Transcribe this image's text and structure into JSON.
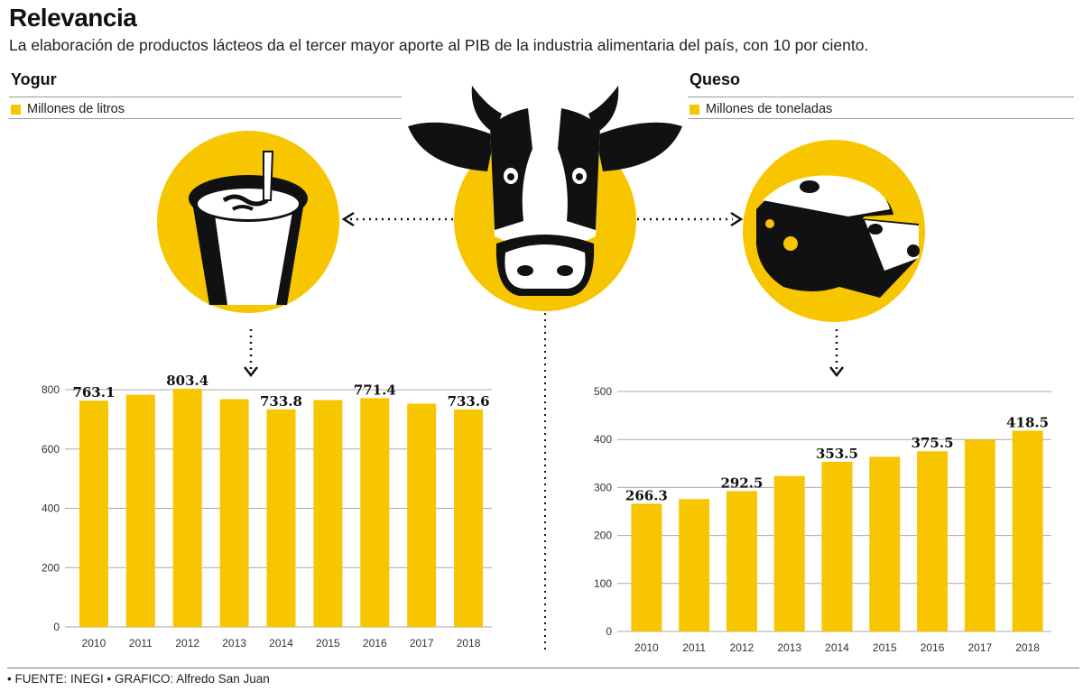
{
  "header": {
    "title": "Relevancia",
    "subtitle": "La elaboración de productos lácteos da el tercer mayor aporte al PIB de la industria alimentaria del país, con 10 por ciento."
  },
  "colors": {
    "bar": "#f7c600",
    "ink": "#111111"
  },
  "icons": [
    "yogurt-cup-icon",
    "cow-face-icon",
    "cheese-wedge-icon"
  ],
  "chart_data": [
    {
      "type": "bar",
      "title": "Yogur",
      "legend": "Millones de litros",
      "categories": [
        "2010",
        "2011",
        "2012",
        "2013",
        "2014",
        "2015",
        "2016",
        "2017",
        "2018"
      ],
      "values": [
        763.1,
        783,
        803.4,
        768,
        733.8,
        765,
        771.4,
        753,
        733.6
      ],
      "labels": [
        "763.1",
        "",
        "803.4",
        "",
        "733.8",
        "",
        "771.4",
        "",
        "733.6"
      ],
      "yticks": [
        0,
        200,
        400,
        600,
        800
      ],
      "ylim": [
        0,
        800
      ],
      "grid": true
    },
    {
      "type": "bar",
      "title": "Queso",
      "legend": "Millones de toneladas",
      "categories": [
        "2010",
        "2011",
        "2012",
        "2013",
        "2014",
        "2015",
        "2016",
        "2017",
        "2018"
      ],
      "values": [
        266.3,
        276,
        292.5,
        324,
        353.5,
        364,
        375.5,
        400,
        418.5
      ],
      "labels": [
        "266.3",
        "",
        "292.5",
        "",
        "353.5",
        "",
        "375.5",
        "",
        "418.5"
      ],
      "yticks": [
        0,
        100,
        200,
        300,
        400,
        500
      ],
      "ylim": [
        0,
        500
      ],
      "grid": true
    }
  ],
  "footer": {
    "source": "• FUENTE: INEGI • GRAFICO: Alfredo San Juan"
  }
}
